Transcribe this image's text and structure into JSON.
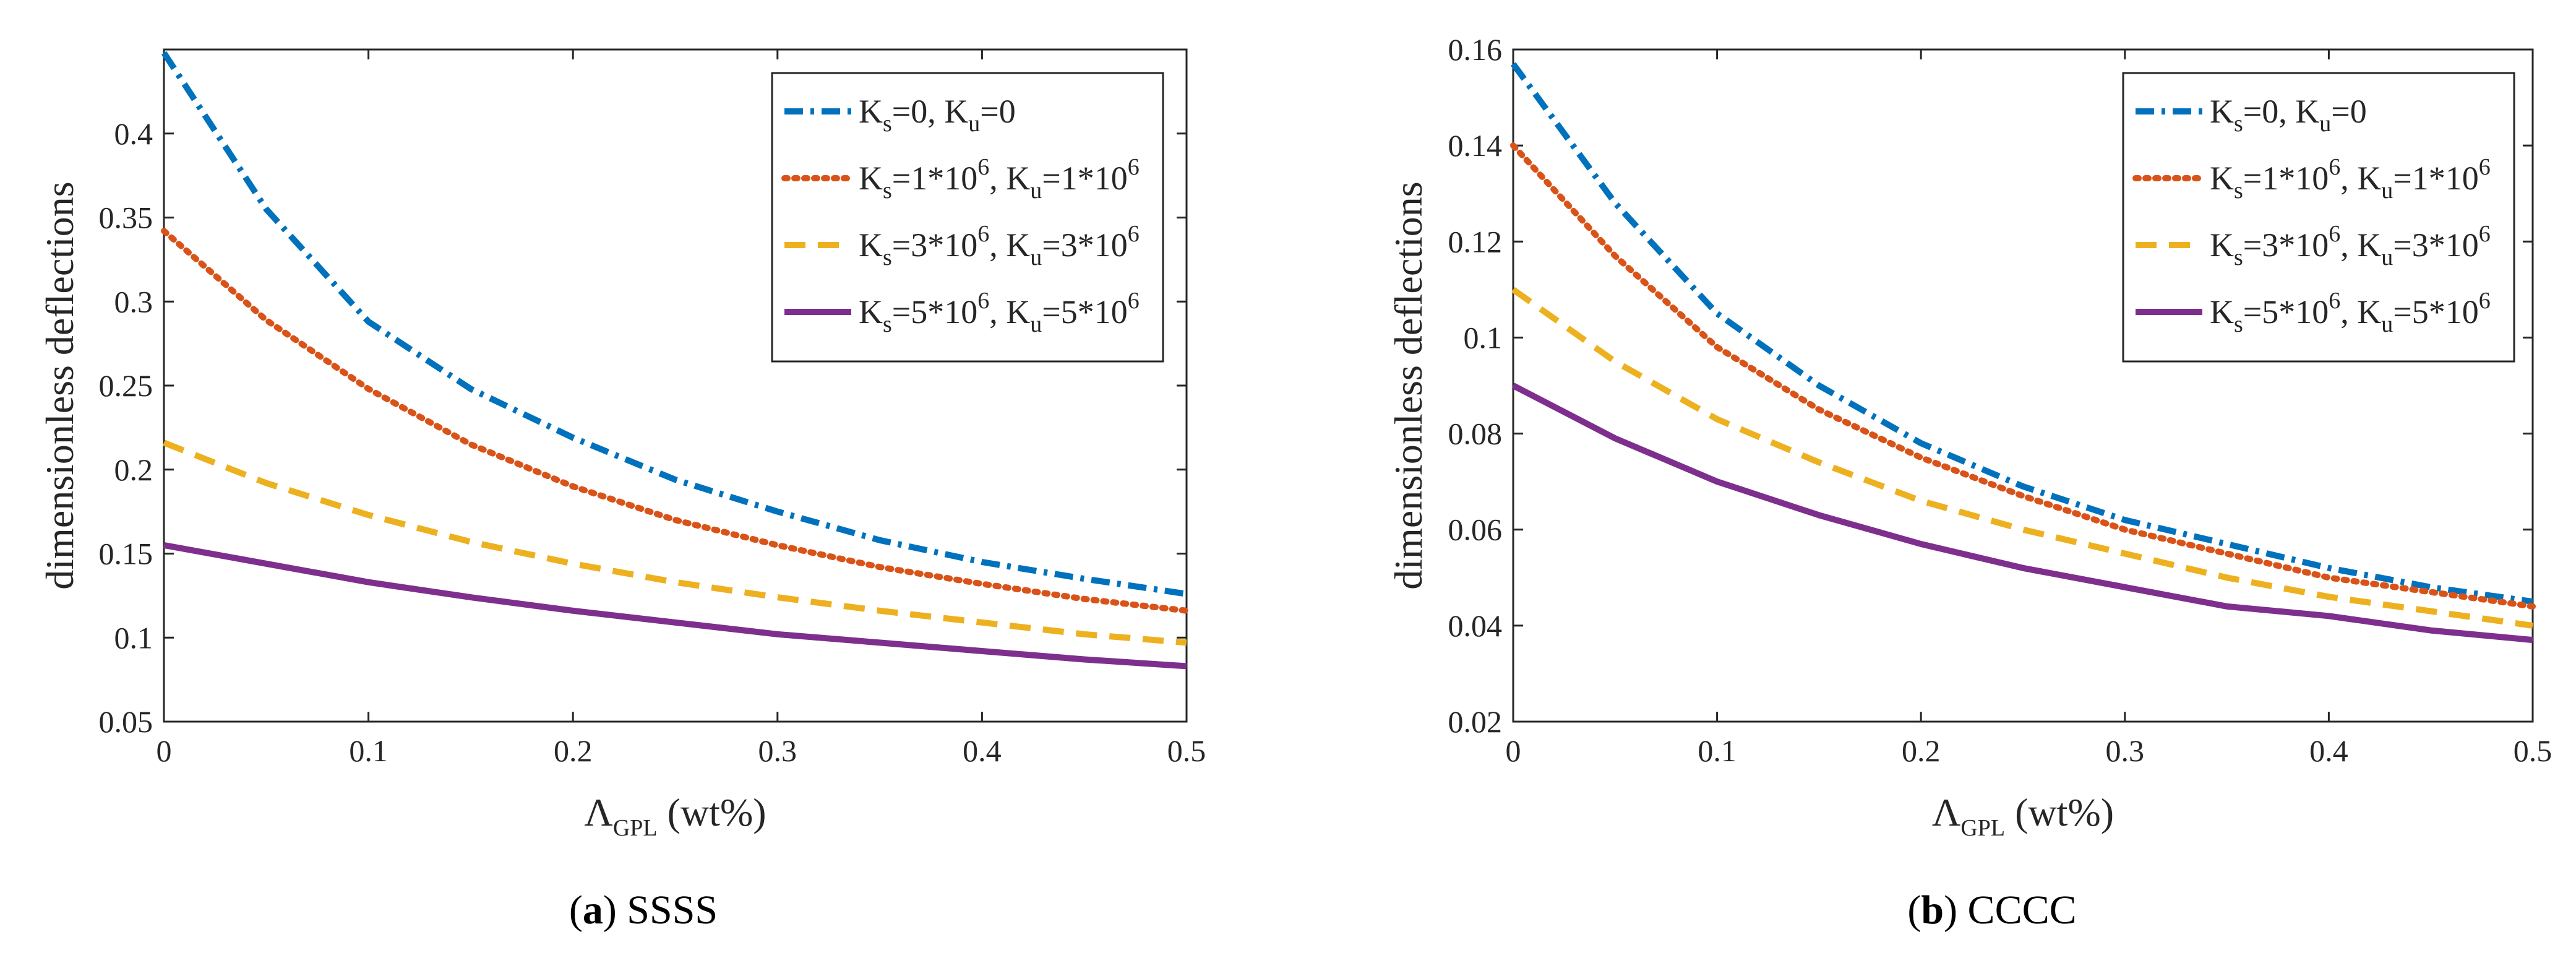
{
  "styles": {
    "colors": [
      "#0072BD",
      "#D95319",
      "#EDB120",
      "#7E2F8E"
    ],
    "dashes": [
      "dashdot",
      "dotted",
      "dashed",
      "solid"
    ]
  },
  "chart_data": [
    {
      "type": "line",
      "caption_label": "(a)",
      "caption_text": "SSSS",
      "xlabel_main": "Λ",
      "xlabel_sub": "GPL",
      "xlabel_unit": "(wt%)",
      "ylabel": "dimensionless deflections",
      "xlim": [
        0,
        0.5
      ],
      "ylim": [
        0.05,
        0.45
      ],
      "xticks": [
        0,
        0.1,
        0.2,
        0.3,
        0.4,
        0.5
      ],
      "xtick_labels": [
        "0",
        "0.1",
        "0.2",
        "0.3",
        "0.4",
        "0.5"
      ],
      "yticks": [
        0.05,
        0.1,
        0.15,
        0.2,
        0.25,
        0.3,
        0.35,
        0.4
      ],
      "ytick_labels": [
        "0.05",
        "0.1",
        "0.15",
        "0.2",
        "0.25",
        "0.3",
        "0.35",
        "0.4"
      ],
      "x": [
        0,
        0.05,
        0.1,
        0.15,
        0.2,
        0.25,
        0.3,
        0.35,
        0.4,
        0.45,
        0.5
      ],
      "legend_position": "top-right",
      "series": [
        {
          "name": "Ks=0, Ku=0",
          "legend": [
            "K",
            "s",
            "=0, K",
            "u",
            "=0"
          ],
          "values": [
            0.448,
            0.355,
            0.288,
            0.248,
            0.219,
            0.194,
            0.175,
            0.158,
            0.145,
            0.135,
            0.126
          ]
        },
        {
          "name": "Ks=1*10^6, Ku=1*10^6",
          "legend": [
            "K",
            "s",
            "=1*10",
            "6",
            ", K",
            "u",
            "=1*10",
            "6"
          ],
          "values": [
            0.342,
            0.289,
            0.248,
            0.215,
            0.19,
            0.17,
            0.155,
            0.142,
            0.132,
            0.123,
            0.116
          ]
        },
        {
          "name": "Ks=3*10^6, Ku=3*10^6",
          "legend": [
            "K",
            "s",
            "=3*10",
            "6",
            ", K",
            "u",
            "=3*10",
            "6"
          ],
          "values": [
            0.216,
            0.192,
            0.173,
            0.157,
            0.144,
            0.133,
            0.124,
            0.116,
            0.109,
            0.102,
            0.097
          ]
        },
        {
          "name": "Ks=5*10^6, Ku=5*10^6",
          "legend": [
            "K",
            "s",
            "=5*10",
            "6",
            ", K",
            "u",
            "=5*10",
            "6"
          ],
          "values": [
            0.155,
            0.144,
            0.133,
            0.124,
            0.116,
            0.109,
            0.102,
            0.097,
            0.092,
            0.087,
            0.083
          ]
        }
      ]
    },
    {
      "type": "line",
      "caption_label": "(b)",
      "caption_text": "CCCC",
      "xlabel_main": "Λ",
      "xlabel_sub": "GPL",
      "xlabel_unit": "(wt%)",
      "ylabel": "dimensionless deflections",
      "xlim": [
        0,
        0.5
      ],
      "ylim": [
        0.02,
        0.16
      ],
      "xticks": [
        0,
        0.1,
        0.2,
        0.3,
        0.4,
        0.5
      ],
      "xtick_labels": [
        "0",
        "0.1",
        "0.2",
        "0.3",
        "0.4",
        "0.5"
      ],
      "yticks": [
        0.02,
        0.04,
        0.06,
        0.08,
        0.1,
        0.12,
        0.14,
        0.16
      ],
      "ytick_labels": [
        "0.02",
        "0.04",
        "0.06",
        "0.08",
        "0.1",
        "0.12",
        "0.14",
        "0.16"
      ],
      "x": [
        0,
        0.05,
        0.1,
        0.15,
        0.2,
        0.25,
        0.3,
        0.35,
        0.4,
        0.45,
        0.5
      ],
      "legend_position": "top-right",
      "series": [
        {
          "name": "Ks=0, Ku=0",
          "legend": [
            "K",
            "s",
            "=0, K",
            "u",
            "=0"
          ],
          "values": [
            0.157,
            0.128,
            0.105,
            0.09,
            0.078,
            0.069,
            0.062,
            0.057,
            0.052,
            0.048,
            0.045
          ]
        },
        {
          "name": "Ks=1*10^6, Ku=1*10^6",
          "legend": [
            "K",
            "s",
            "=1*10",
            "6",
            ", K",
            "u",
            "=1*10",
            "6"
          ],
          "values": [
            0.14,
            0.117,
            0.098,
            0.085,
            0.075,
            0.067,
            0.06,
            0.055,
            0.05,
            0.047,
            0.044
          ]
        },
        {
          "name": "Ks=3*10^6, Ku=3*10^6",
          "legend": [
            "K",
            "s",
            "=3*10",
            "6",
            ", K",
            "u",
            "=3*10",
            "6"
          ],
          "values": [
            0.11,
            0.095,
            0.083,
            0.074,
            0.066,
            0.06,
            0.055,
            0.05,
            0.046,
            0.043,
            0.04
          ]
        },
        {
          "name": "Ks=5*10^6, Ku=5*10^6",
          "legend": [
            "K",
            "s",
            "=5*10",
            "6",
            ", K",
            "u",
            "=5*10",
            "6"
          ],
          "values": [
            0.09,
            0.079,
            0.07,
            0.063,
            0.057,
            0.052,
            0.048,
            0.044,
            0.042,
            0.039,
            0.037
          ]
        }
      ]
    }
  ]
}
